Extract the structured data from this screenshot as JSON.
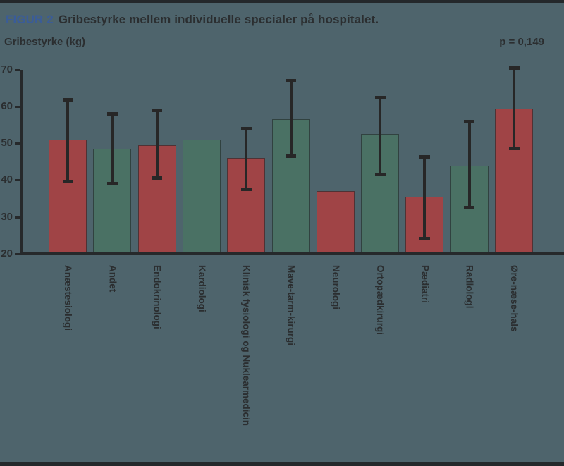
{
  "figure": {
    "label": "FIGUR 2",
    "title": "Gribestyrke mellem individuelle specialer på hospitalet.",
    "y_axis_title": "Gribestyrke (kg)",
    "p_value": "p = 0,149"
  },
  "colors": {
    "background": "#4e646c",
    "bar_red": "#a04446",
    "bar_green": "#4a7164",
    "axis": "#26292b",
    "error_bar": "#272727",
    "figure_label_blue": "#3a5c99",
    "text_dark": "#2b2e30",
    "border_dark": "#24282b"
  },
  "chart_data": {
    "type": "bar",
    "title": "Gribestyrke mellem individuelle specialer på hospitalet.",
    "xlabel": "",
    "ylabel": "Gribestyrke (kg)",
    "ylim": [
      20,
      70
    ],
    "yticks": [
      20,
      30,
      40,
      50,
      60,
      70
    ],
    "grid": false,
    "legend": "none",
    "annotation": "p = 0,149",
    "categories": [
      "Anæstesiologi",
      "Andet",
      "Endokrinologi",
      "Kardiologi",
      "Klinisk fysiologi og Nuklearmedicin",
      "Mave-tarm-kirurgi",
      "Neurologi",
      "Ortopædkirurgi",
      "Pædiatri",
      "Radiologi",
      "Øre-næse-hals"
    ],
    "values": [
      51,
      48.5,
      49.5,
      51,
      46,
      56.5,
      37,
      52.5,
      35.5,
      44,
      59.5
    ],
    "error_low": [
      39.5,
      39,
      40.5,
      null,
      37.5,
      46.5,
      null,
      41.5,
      24,
      32.5,
      48.5
    ],
    "error_high": [
      62,
      58,
      59,
      null,
      54,
      67,
      null,
      62.5,
      46.5,
      56,
      70.5
    ],
    "bar_colors": [
      "red",
      "green",
      "red",
      "green",
      "red",
      "green",
      "red",
      "green",
      "red",
      "green",
      "red"
    ]
  }
}
